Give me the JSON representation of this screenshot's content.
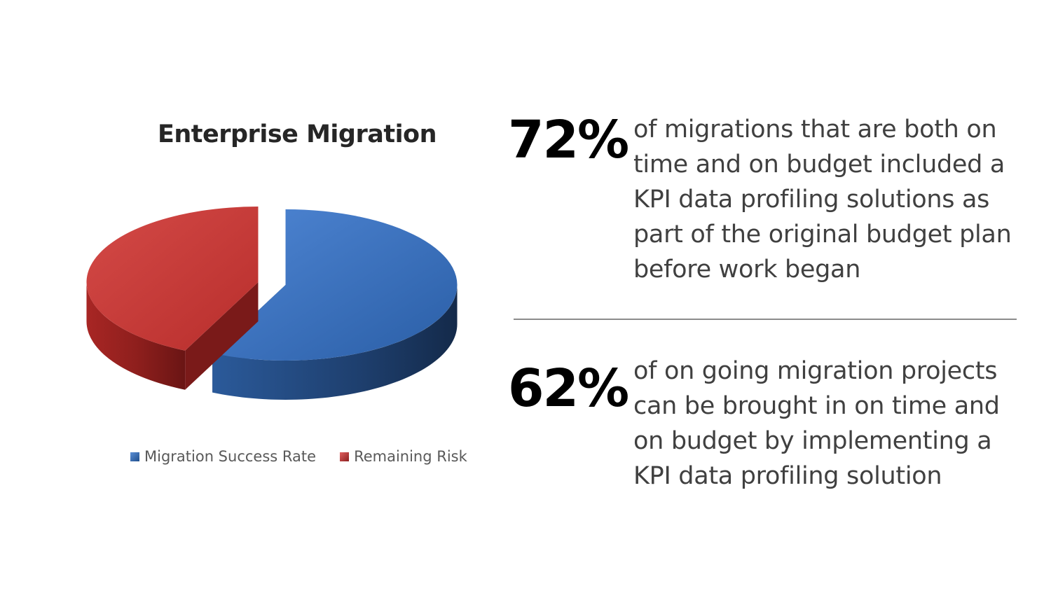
{
  "chart_data": {
    "type": "pie",
    "title": "Enterprise Migration",
    "slices": [
      {
        "name": "Migration Success Rate",
        "value": 57,
        "color": "#2f6cbf",
        "exploded": true
      },
      {
        "name": "Remaining Risk",
        "value": 43,
        "color": "#c0302e",
        "exploded": true
      }
    ],
    "three_d": true,
    "legend": "bottom"
  },
  "stats": [
    {
      "value": "72%",
      "lines": [
        "of migrations that are both on",
        "time and on budget included a",
        "KPI data profiling solutions as",
        "part of the original budget plan",
        "before work began"
      ]
    },
    {
      "value": "62%",
      "lines": [
        "of on going migration projects",
        "can be brought in on time and",
        "on budget by implementing a",
        "KPI data profiling solution"
      ]
    }
  ]
}
